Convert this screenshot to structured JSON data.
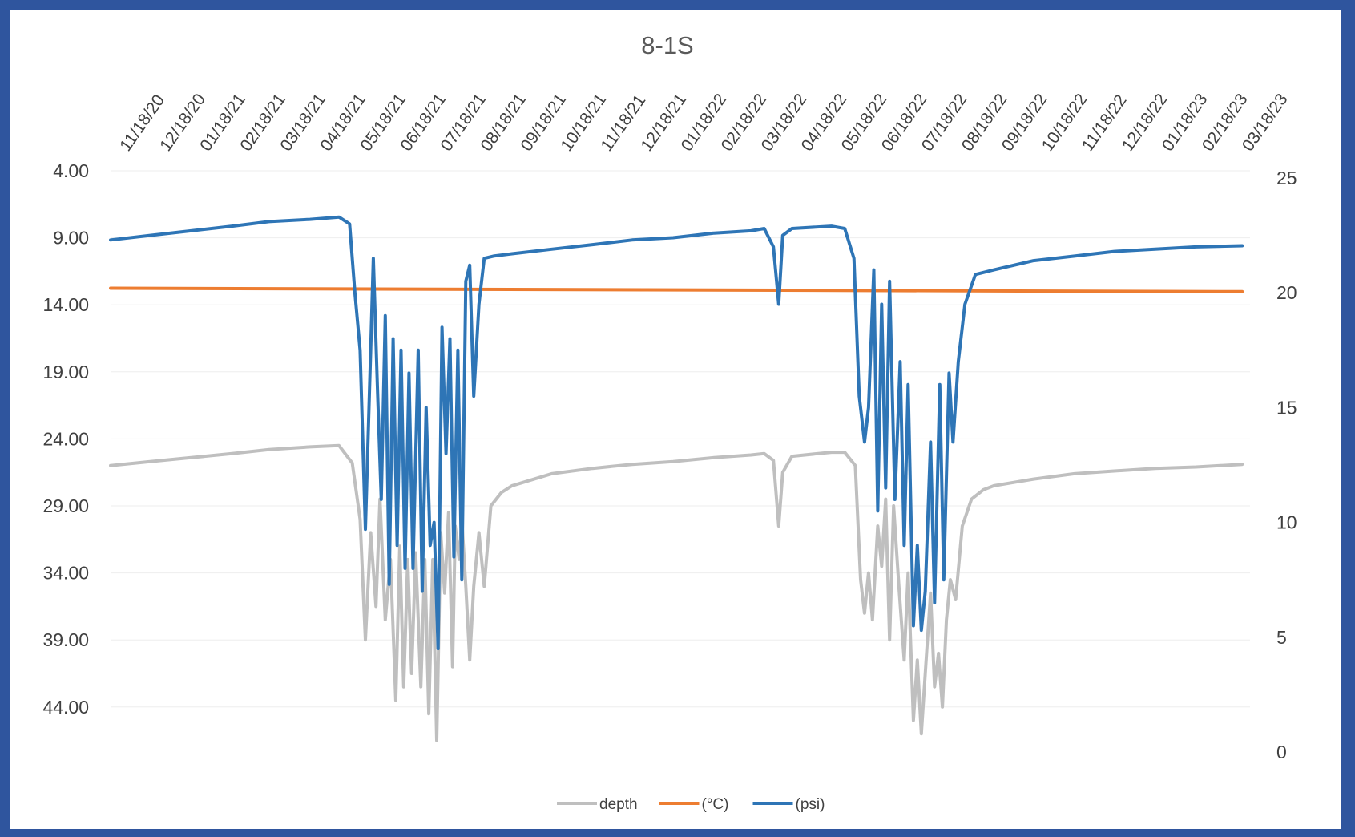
{
  "chart_data": {
    "type": "line",
    "title": "8-1S",
    "x_dates": [
      "11/18/20",
      "12/18/20",
      "01/18/21",
      "02/18/21",
      "03/18/21",
      "04/18/21",
      "05/18/21",
      "06/18/21",
      "07/18/21",
      "08/18/21",
      "09/18/21",
      "10/18/21",
      "11/18/21",
      "12/18/21",
      "01/18/22",
      "02/18/22",
      "03/18/22",
      "04/18/22",
      "05/18/22",
      "06/18/22",
      "07/18/22",
      "08/18/22",
      "09/18/22",
      "10/18/22",
      "11/18/22",
      "12/18/22",
      "01/18/23",
      "02/18/23",
      "03/18/23"
    ],
    "left_axis": {
      "min": 4,
      "max": 47.5,
      "reversed": true,
      "ticks": [
        "4.00",
        "9.00",
        "14.00",
        "19.00",
        "24.00",
        "29.00",
        "34.00",
        "39.00",
        "44.00"
      ]
    },
    "right_axis": {
      "min": 0,
      "max": 25,
      "ticks": [
        "0",
        "5",
        "10",
        "15",
        "20",
        "25"
      ]
    },
    "grid": true,
    "legend_position": "bottom",
    "series": [
      {
        "name": "depth",
        "axis": "left",
        "color": "#bfbfbf",
        "points": [
          [
            "11/18/20",
            26.0
          ],
          [
            "12/18/20",
            25.7
          ],
          [
            "01/18/21",
            25.4
          ],
          [
            "02/18/21",
            25.1
          ],
          [
            "03/18/21",
            24.8
          ],
          [
            "04/18/21",
            24.6
          ],
          [
            "05/10/21",
            24.5
          ],
          [
            "05/20/21",
            25.8
          ],
          [
            "05/26/21",
            30.0
          ],
          [
            "05/30/21",
            39.0
          ],
          [
            "06/03/21",
            31.0
          ],
          [
            "06/07/21",
            36.5
          ],
          [
            "06/10/21",
            28.5
          ],
          [
            "06/14/21",
            37.5
          ],
          [
            "06/18/21",
            33.0
          ],
          [
            "06/22/21",
            43.5
          ],
          [
            "06/25/21",
            32.0
          ],
          [
            "06/28/21",
            42.5
          ],
          [
            "07/01/21",
            33.0
          ],
          [
            "07/04/21",
            41.5
          ],
          [
            "07/07/21",
            32.5
          ],
          [
            "07/11/21",
            42.5
          ],
          [
            "07/14/21",
            33.0
          ],
          [
            "07/17/21",
            44.5
          ],
          [
            "07/20/21",
            33.0
          ],
          [
            "07/23/21",
            46.5
          ],
          [
            "07/26/21",
            31.0
          ],
          [
            "07/29/21",
            35.5
          ],
          [
            "08/01/21",
            29.5
          ],
          [
            "08/04/21",
            41.0
          ],
          [
            "08/06/21",
            30.5
          ],
          [
            "08/09/21",
            33.0
          ],
          [
            "08/11/21",
            30.0
          ],
          [
            "08/14/21",
            35.0
          ],
          [
            "08/17/21",
            40.5
          ],
          [
            "08/20/21",
            35.0
          ],
          [
            "08/24/21",
            31.0
          ],
          [
            "08/28/21",
            35.0
          ],
          [
            "09/02/21",
            29.0
          ],
          [
            "09/10/21",
            28.0
          ],
          [
            "09/18/21",
            27.5
          ],
          [
            "10/18/21",
            26.6
          ],
          [
            "11/18/21",
            26.2
          ],
          [
            "12/18/21",
            25.9
          ],
          [
            "01/18/22",
            25.7
          ],
          [
            "02/18/22",
            25.4
          ],
          [
            "03/18/22",
            25.2
          ],
          [
            "03/28/22",
            25.1
          ],
          [
            "04/04/22",
            25.6
          ],
          [
            "04/08/22",
            30.5
          ],
          [
            "04/11/22",
            26.5
          ],
          [
            "04/18/22",
            25.3
          ],
          [
            "05/18/22",
            25.0
          ],
          [
            "05/28/22",
            25.0
          ],
          [
            "06/05/22",
            26.0
          ],
          [
            "06/09/22",
            34.5
          ],
          [
            "06/12/22",
            37.0
          ],
          [
            "06/15/22",
            34.0
          ],
          [
            "06/18/22",
            37.5
          ],
          [
            "06/22/22",
            30.5
          ],
          [
            "06/25/22",
            33.5
          ],
          [
            "06/28/22",
            28.5
          ],
          [
            "07/01/22",
            39.0
          ],
          [
            "07/04/22",
            29.0
          ],
          [
            "07/08/22",
            35.0
          ],
          [
            "07/12/22",
            40.5
          ],
          [
            "07/15/22",
            34.0
          ],
          [
            "07/19/22",
            45.0
          ],
          [
            "07/22/22",
            40.5
          ],
          [
            "07/25/22",
            46.0
          ],
          [
            "07/28/22",
            41.5
          ],
          [
            "08/01/22",
            35.5
          ],
          [
            "08/04/22",
            42.5
          ],
          [
            "08/07/22",
            40.0
          ],
          [
            "08/10/22",
            44.0
          ],
          [
            "08/13/22",
            37.5
          ],
          [
            "08/16/22",
            34.5
          ],
          [
            "08/20/22",
            36.0
          ],
          [
            "08/25/22",
            30.5
          ],
          [
            "09/01/22",
            28.5
          ],
          [
            "09/10/22",
            27.8
          ],
          [
            "09/18/22",
            27.5
          ],
          [
            "10/18/22",
            27.0
          ],
          [
            "11/18/22",
            26.6
          ],
          [
            "12/18/22",
            26.4
          ],
          [
            "01/18/23",
            26.2
          ],
          [
            "02/18/23",
            26.1
          ],
          [
            "03/25/23",
            25.9
          ]
        ]
      },
      {
        "name": "(°C)",
        "axis": "right",
        "color": "#ed7d31",
        "points": [
          [
            "11/18/20",
            20.2
          ],
          [
            "03/25/23",
            20.05
          ]
        ]
      },
      {
        "name": "(psi)",
        "axis": "right",
        "color": "#2e75b6",
        "points": [
          [
            "11/18/20",
            22.3
          ],
          [
            "12/18/20",
            22.5
          ],
          [
            "01/18/21",
            22.7
          ],
          [
            "02/18/21",
            22.9
          ],
          [
            "03/18/21",
            23.1
          ],
          [
            "04/18/21",
            23.2
          ],
          [
            "05/10/21",
            23.3
          ],
          [
            "05/18/21",
            23.0
          ],
          [
            "05/22/21",
            20.0
          ],
          [
            "05/26/21",
            17.5
          ],
          [
            "05/30/21",
            9.7
          ],
          [
            "06/03/21",
            17.5
          ],
          [
            "06/05/21",
            21.5
          ],
          [
            "06/08/21",
            16.0
          ],
          [
            "06/11/21",
            11.0
          ],
          [
            "06/14/21",
            19.0
          ],
          [
            "06/17/21",
            7.3
          ],
          [
            "06/20/21",
            18.0
          ],
          [
            "06/23/21",
            9.0
          ],
          [
            "06/26/21",
            17.5
          ],
          [
            "06/29/21",
            8.0
          ],
          [
            "07/02/21",
            16.5
          ],
          [
            "07/05/21",
            8.0
          ],
          [
            "07/09/21",
            17.5
          ],
          [
            "07/12/21",
            7.0
          ],
          [
            "07/15/21",
            15.0
          ],
          [
            "07/18/21",
            9.0
          ],
          [
            "07/21/21",
            10.0
          ],
          [
            "07/24/21",
            4.5
          ],
          [
            "07/27/21",
            18.5
          ],
          [
            "07/30/21",
            13.0
          ],
          [
            "08/02/21",
            18.0
          ],
          [
            "08/05/21",
            8.5
          ],
          [
            "08/08/21",
            17.5
          ],
          [
            "08/11/21",
            7.5
          ],
          [
            "08/14/21",
            20.5
          ],
          [
            "08/17/21",
            21.2
          ],
          [
            "08/20/21",
            15.5
          ],
          [
            "08/24/21",
            19.5
          ],
          [
            "08/28/21",
            21.5
          ],
          [
            "09/04/21",
            21.6
          ],
          [
            "09/18/21",
            21.7
          ],
          [
            "10/18/21",
            21.9
          ],
          [
            "11/18/21",
            22.1
          ],
          [
            "12/18/21",
            22.3
          ],
          [
            "01/18/22",
            22.4
          ],
          [
            "02/18/22",
            22.6
          ],
          [
            "03/18/22",
            22.7
          ],
          [
            "03/28/22",
            22.8
          ],
          [
            "04/04/22",
            22.0
          ],
          [
            "04/08/22",
            19.5
          ],
          [
            "04/11/22",
            22.5
          ],
          [
            "04/18/22",
            22.8
          ],
          [
            "05/18/22",
            22.9
          ],
          [
            "05/28/22",
            22.8
          ],
          [
            "06/04/22",
            21.5
          ],
          [
            "06/08/22",
            15.5
          ],
          [
            "06/12/22",
            13.5
          ],
          [
            "06/15/22",
            15.0
          ],
          [
            "06/19/22",
            21.0
          ],
          [
            "06/22/22",
            10.5
          ],
          [
            "06/25/22",
            19.5
          ],
          [
            "06/28/22",
            11.5
          ],
          [
            "07/01/22",
            20.5
          ],
          [
            "07/05/22",
            11.0
          ],
          [
            "07/09/22",
            17.0
          ],
          [
            "07/12/22",
            9.0
          ],
          [
            "07/15/22",
            16.0
          ],
          [
            "07/19/22",
            5.5
          ],
          [
            "07/22/22",
            9.0
          ],
          [
            "07/25/22",
            5.3
          ],
          [
            "07/28/22",
            7.0
          ],
          [
            "08/01/22",
            13.5
          ],
          [
            "08/04/22",
            6.5
          ],
          [
            "08/08/22",
            16.0
          ],
          [
            "08/11/22",
            7.5
          ],
          [
            "08/15/22",
            16.5
          ],
          [
            "08/18/22",
            13.5
          ],
          [
            "08/22/22",
            17.0
          ],
          [
            "08/27/22",
            19.5
          ],
          [
            "09/04/22",
            20.8
          ],
          [
            "09/18/22",
            21.0
          ],
          [
            "10/18/22",
            21.4
          ],
          [
            "11/18/22",
            21.6
          ],
          [
            "12/18/22",
            21.8
          ],
          [
            "01/18/23",
            21.9
          ],
          [
            "02/18/23",
            22.0
          ],
          [
            "03/25/23",
            22.05
          ]
        ]
      }
    ]
  }
}
